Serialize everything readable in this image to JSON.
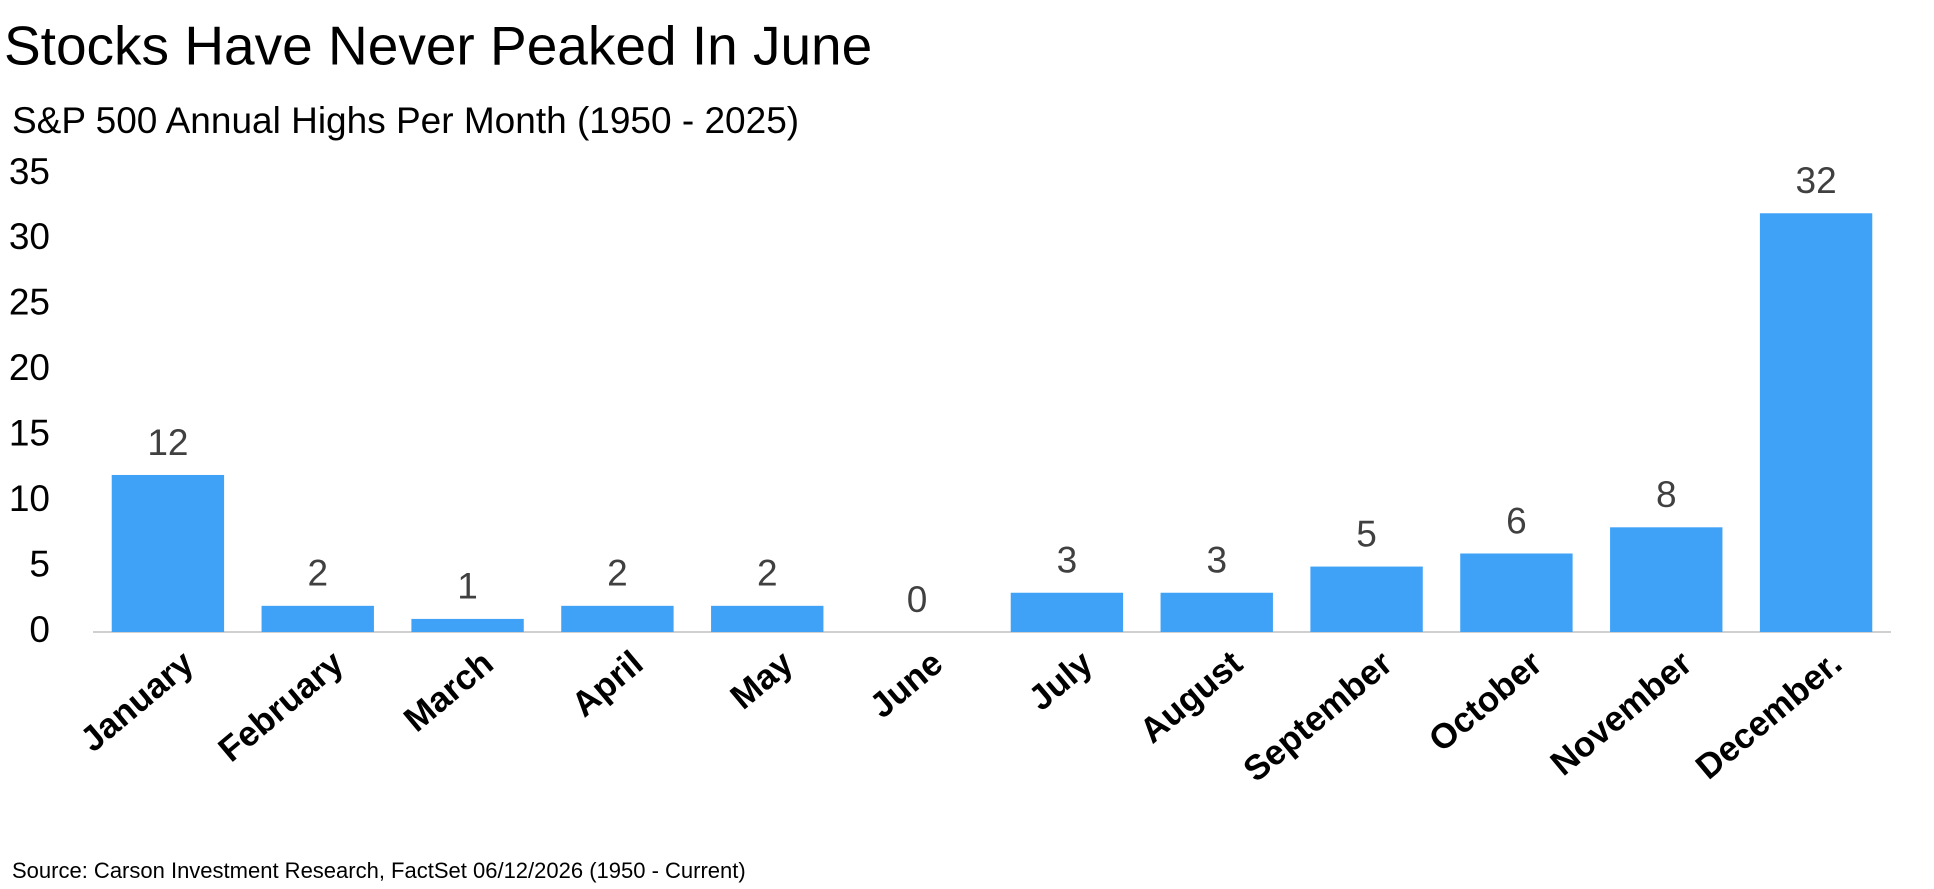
{
  "chart_data": {
    "type": "bar",
    "title": "Stocks Have Never Peaked In June",
    "subtitle": "S&P 500 Annual Highs Per Month (1950 - 2025)",
    "categories": [
      "January",
      "February",
      "March",
      "April",
      "May",
      "June",
      "July",
      "August",
      "September",
      "October",
      "November",
      "December."
    ],
    "values": [
      12,
      2,
      1,
      2,
      2,
      0,
      3,
      3,
      5,
      6,
      8,
      32
    ],
    "color": "#3fa2f7",
    "ylim": [
      0,
      35
    ],
    "yticks": [
      0,
      5,
      10,
      15,
      20,
      25,
      30,
      35
    ],
    "grid": false,
    "source": "Source: Carson Investment Research, FactSet 06/12/2026 (1950 - Current)"
  }
}
